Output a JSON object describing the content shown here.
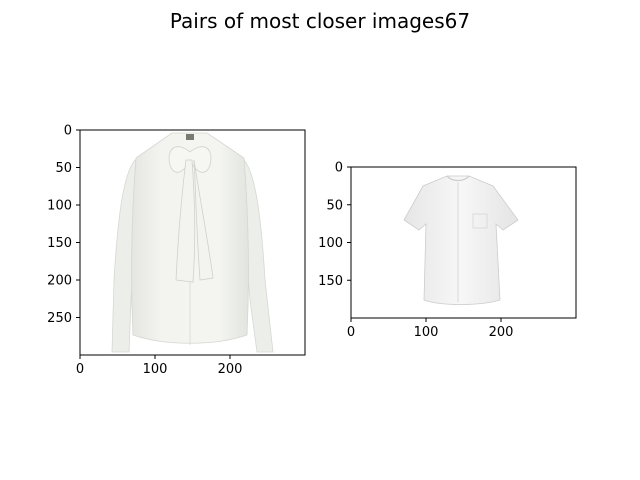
{
  "figure": {
    "title": "Pairs of most closer images67"
  },
  "chart_data": [
    {
      "type": "image",
      "title": "",
      "image_subject": "long-sleeve white blouse with pussy-bow neck tie",
      "image_size": [
        300,
        300
      ],
      "xlim": [
        0,
        300
      ],
      "ylim": [
        300,
        0
      ],
      "xticks": [
        0,
        100,
        200
      ],
      "yticks": [
        0,
        50,
        100,
        150,
        200,
        250
      ]
    },
    {
      "type": "image",
      "title": "",
      "image_subject": "short-sleeve white collarless button-up shirt with chest pocket",
      "image_size": [
        300,
        200
      ],
      "xlim": [
        0,
        300
      ],
      "ylim": [
        200,
        0
      ],
      "xticks": [
        0,
        100,
        200
      ],
      "yticks": [
        0,
        50,
        100,
        150
      ]
    }
  ]
}
